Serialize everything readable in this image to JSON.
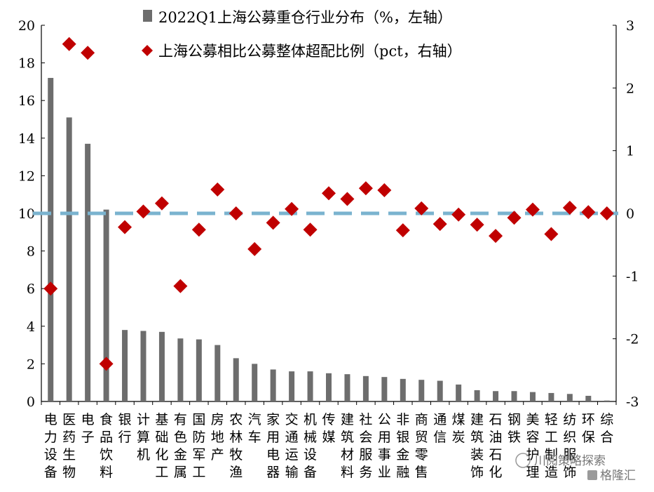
{
  "chart_data": {
    "type": "bar",
    "categories": [
      "电力设备",
      "医药生物",
      "电子",
      "食品饮料",
      "银行",
      "计算机",
      "基础化工",
      "有色金属",
      "国防军工",
      "房地产",
      "农林牧渔",
      "汽车",
      "家用电器",
      "交通运输",
      "机械设备",
      "传媒",
      "建筑材料",
      "社会服务",
      "公用事业",
      "非银金融",
      "商贸零售",
      "通信",
      "煤炭",
      "建筑装饰",
      "石油石化",
      "钢铁",
      "美容护理",
      "轻工制造",
      "纺织服饰",
      "环保",
      "综合"
    ],
    "series": [
      {
        "name": "2022Q1上海公募重仓行业分布（%，左轴）",
        "type": "bar",
        "axis": "left",
        "color": "#6d6d6d",
        "values": [
          17.2,
          15.1,
          13.7,
          10.2,
          3.8,
          3.75,
          3.7,
          3.35,
          3.3,
          3.0,
          2.3,
          2.0,
          1.7,
          1.6,
          1.6,
          1.5,
          1.45,
          1.35,
          1.3,
          1.2,
          1.15,
          1.1,
          0.9,
          0.6,
          0.55,
          0.55,
          0.5,
          0.45,
          0.4,
          0.3,
          0.05
        ]
      },
      {
        "name": "上海公募相比公募整体超配比例（pct，右轴）",
        "type": "scatter",
        "axis": "right",
        "color": "#c00000",
        "values": [
          -1.2,
          2.7,
          2.56,
          -2.4,
          -0.22,
          0.03,
          0.16,
          -1.16,
          -0.26,
          0.38,
          0.0,
          -0.57,
          -0.15,
          0.07,
          -0.26,
          0.32,
          0.23,
          0.4,
          0.37,
          -0.27,
          0.08,
          -0.17,
          -0.02,
          -0.18,
          -0.36,
          -0.07,
          0.06,
          -0.33,
          0.09,
          0.02,
          0.0
        ]
      }
    ],
    "y_left": {
      "ylim": [
        0,
        20
      ],
      "ticks": [
        "0",
        "2",
        "4",
        "6",
        "8",
        "10",
        "12",
        "14",
        "16",
        "18",
        "20"
      ]
    },
    "y_right": {
      "ylim": [
        -3,
        3
      ],
      "ticks": [
        "-3",
        "-2",
        "-1",
        "0",
        "1",
        "2",
        "3"
      ]
    },
    "reference_line": {
      "axis": "right",
      "value": 0,
      "style": "dashed",
      "color": "#7ab3cf"
    },
    "legend": {
      "placement": "top-center"
    },
    "grid": false,
    "title": "",
    "xlabel": "",
    "ylabel": ""
  },
  "watermark": {
    "text": "川阅策略探索",
    "logo_text": "格隆汇"
  }
}
